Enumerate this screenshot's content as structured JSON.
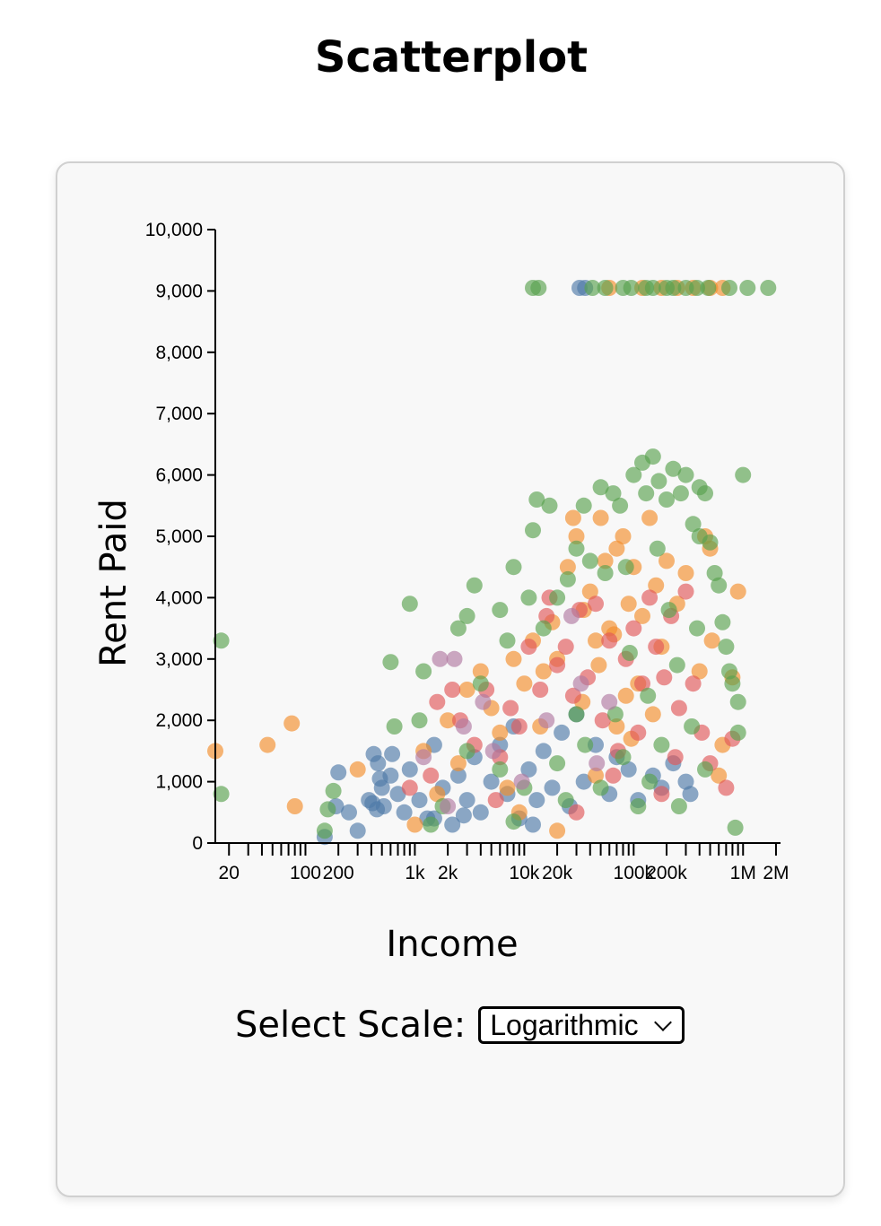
{
  "page": {
    "title": "Scatterplot"
  },
  "controls": {
    "scale_label": "Select Scale:",
    "scale_selected": "Logarithmic"
  },
  "chart_data": {
    "type": "scatter",
    "x_scale": "log",
    "xlabel": "Income",
    "ylabel": "Rent Paid",
    "xlim": [
      15,
      2200000
    ],
    "ylim": [
      0,
      10000
    ],
    "x_ticks": [
      {
        "value": 20,
        "label": "20"
      },
      {
        "value": 100,
        "label": "100"
      },
      {
        "value": 200,
        "label": "200"
      },
      {
        "value": 1000,
        "label": "1k"
      },
      {
        "value": 2000,
        "label": "2k"
      },
      {
        "value": 10000,
        "label": "10k"
      },
      {
        "value": 20000,
        "label": "20k"
      },
      {
        "value": 100000,
        "label": "100k"
      },
      {
        "value": 200000,
        "label": "200k"
      },
      {
        "value": 1000000,
        "label": "1M"
      },
      {
        "value": 2000000,
        "label": "2M"
      }
    ],
    "y_ticks": [
      {
        "value": 0,
        "label": "0"
      },
      {
        "value": 1000,
        "label": "1,000"
      },
      {
        "value": 2000,
        "label": "2,000"
      },
      {
        "value": 3000,
        "label": "3,000"
      },
      {
        "value": 4000,
        "label": "4,000"
      },
      {
        "value": 5000,
        "label": "5,000"
      },
      {
        "value": 6000,
        "label": "6,000"
      },
      {
        "value": 7000,
        "label": "7,000"
      },
      {
        "value": 8000,
        "label": "8,000"
      },
      {
        "value": 9000,
        "label": "9,000"
      },
      {
        "value": 10000,
        "label": "10,000"
      }
    ],
    "grid": false,
    "legend": "none",
    "series": [
      {
        "color": "#4e79a7",
        "points": [
          [
            420,
            1450
          ],
          [
            460,
            1300
          ],
          [
            500,
            900
          ],
          [
            520,
            600
          ],
          [
            380,
            700
          ],
          [
            450,
            550
          ],
          [
            600,
            1100
          ],
          [
            700,
            800
          ],
          [
            800,
            500
          ],
          [
            900,
            1200
          ],
          [
            1100,
            700
          ],
          [
            1300,
            400
          ],
          [
            1500,
            1600
          ],
          [
            1800,
            900
          ],
          [
            2200,
            300
          ],
          [
            2500,
            1100
          ],
          [
            3000,
            700
          ],
          [
            3500,
            1400
          ],
          [
            4000,
            500
          ],
          [
            5000,
            1000
          ],
          [
            6000,
            1600
          ],
          [
            7000,
            800
          ],
          [
            8000,
            1900
          ],
          [
            9000,
            400
          ],
          [
            11000,
            1200
          ],
          [
            13000,
            700
          ],
          [
            15000,
            1500
          ],
          [
            18000,
            900
          ],
          [
            22000,
            1800
          ],
          [
            26000,
            600
          ],
          [
            30000,
            2100
          ],
          [
            35000,
            1000
          ],
          [
            45000,
            1600
          ],
          [
            60000,
            800
          ],
          [
            70000,
            1400
          ],
          [
            90000,
            1200
          ],
          [
            110000,
            700
          ],
          [
            150000,
            1100
          ],
          [
            180000,
            900
          ],
          [
            230000,
            1300
          ],
          [
            300000,
            1000
          ],
          [
            330000,
            800
          ],
          [
            250,
            500
          ],
          [
            300,
            200
          ],
          [
            200,
            1150
          ],
          [
            190,
            600
          ],
          [
            150,
            100
          ],
          [
            620,
            1450
          ],
          [
            1500,
            400
          ],
          [
            32000,
            9050
          ],
          [
            36000,
            9050
          ],
          [
            410,
            650
          ],
          [
            480,
            1050
          ],
          [
            2800,
            450
          ],
          [
            12000,
            300
          ]
        ]
      },
      {
        "color": "#f28e2b",
        "points": [
          [
            15,
            1500
          ],
          [
            45,
            1600
          ],
          [
            75,
            1950
          ],
          [
            80,
            600
          ],
          [
            300,
            1200
          ],
          [
            1200,
            1500
          ],
          [
            2000,
            2000
          ],
          [
            3000,
            2500
          ],
          [
            4000,
            2800
          ],
          [
            5000,
            2200
          ],
          [
            6000,
            1800
          ],
          [
            8000,
            3000
          ],
          [
            10000,
            2600
          ],
          [
            12000,
            3300
          ],
          [
            15000,
            2800
          ],
          [
            18000,
            3600
          ],
          [
            20000,
            3000
          ],
          [
            25000,
            4500
          ],
          [
            28000,
            5300
          ],
          [
            30000,
            5000
          ],
          [
            35000,
            3800
          ],
          [
            40000,
            4100
          ],
          [
            45000,
            3300
          ],
          [
            50000,
            5300
          ],
          [
            55000,
            4600
          ],
          [
            60000,
            3500
          ],
          [
            70000,
            4800
          ],
          [
            80000,
            5000
          ],
          [
            90000,
            3900
          ],
          [
            100000,
            4500
          ],
          [
            120000,
            3700
          ],
          [
            140000,
            5300
          ],
          [
            160000,
            4200
          ],
          [
            180000,
            3200
          ],
          [
            200000,
            4600
          ],
          [
            250000,
            3900
          ],
          [
            300000,
            4400
          ],
          [
            400000,
            2800
          ],
          [
            450000,
            5000
          ],
          [
            500000,
            4800
          ],
          [
            520000,
            3300
          ],
          [
            600000,
            1100
          ],
          [
            800000,
            2700
          ],
          [
            900000,
            4100
          ],
          [
            650000,
            1600
          ],
          [
            1000,
            300
          ],
          [
            1600,
            800
          ],
          [
            2500,
            1300
          ],
          [
            7000,
            900
          ],
          [
            9000,
            500
          ],
          [
            20000,
            200
          ],
          [
            45000,
            1100
          ],
          [
            70000,
            1900
          ],
          [
            110000,
            2600
          ],
          [
            150000,
            2100
          ],
          [
            60000,
            9050
          ],
          [
            120000,
            9050
          ],
          [
            180000,
            9050
          ],
          [
            250000,
            9050
          ],
          [
            350000,
            9050
          ],
          [
            500000,
            9050
          ],
          [
            650000,
            9050
          ],
          [
            34000,
            2300
          ],
          [
            48000,
            2900
          ],
          [
            66000,
            3400
          ],
          [
            85000,
            2400
          ],
          [
            95000,
            1700
          ],
          [
            14000,
            1900
          ]
        ]
      },
      {
        "color": "#e15759",
        "points": [
          [
            900,
            900
          ],
          [
            1600,
            2300
          ],
          [
            2200,
            2500
          ],
          [
            2600,
            2000
          ],
          [
            3500,
            1600
          ],
          [
            4500,
            2500
          ],
          [
            6000,
            1400
          ],
          [
            7500,
            2200
          ],
          [
            9000,
            1900
          ],
          [
            11000,
            3200
          ],
          [
            14000,
            2500
          ],
          [
            16000,
            3700
          ],
          [
            17000,
            4000
          ],
          [
            20000,
            2900
          ],
          [
            24000,
            3200
          ],
          [
            28000,
            2400
          ],
          [
            32000,
            3800
          ],
          [
            38000,
            2700
          ],
          [
            45000,
            3900
          ],
          [
            52000,
            2000
          ],
          [
            60000,
            3300
          ],
          [
            72000,
            1500
          ],
          [
            85000,
            3000
          ],
          [
            100000,
            3500
          ],
          [
            120000,
            2600
          ],
          [
            140000,
            4000
          ],
          [
            160000,
            3200
          ],
          [
            190000,
            2700
          ],
          [
            220000,
            3700
          ],
          [
            260000,
            2200
          ],
          [
            300000,
            4100
          ],
          [
            350000,
            2600
          ],
          [
            420000,
            1800
          ],
          [
            500000,
            1300
          ],
          [
            700000,
            900
          ],
          [
            800000,
            1700
          ],
          [
            1400,
            1100
          ],
          [
            5500,
            700
          ],
          [
            30000,
            500
          ],
          [
            65000,
            1100
          ],
          [
            110000,
            1800
          ],
          [
            180000,
            800
          ],
          [
            240000,
            1400
          ]
        ]
      },
      {
        "color": "#59a14f",
        "points": [
          [
            17,
            3300
          ],
          [
            17,
            800
          ],
          [
            180,
            850
          ],
          [
            160,
            550
          ],
          [
            150,
            200
          ],
          [
            600,
            2950
          ],
          [
            650,
            1900
          ],
          [
            900,
            3900
          ],
          [
            1100,
            2000
          ],
          [
            1200,
            2800
          ],
          [
            2500,
            3500
          ],
          [
            3000,
            3700
          ],
          [
            3500,
            4200
          ],
          [
            4000,
            2600
          ],
          [
            6000,
            3800
          ],
          [
            7000,
            3300
          ],
          [
            8000,
            4500
          ],
          [
            11000,
            4000
          ],
          [
            12000,
            5100
          ],
          [
            13000,
            5600
          ],
          [
            15000,
            3500
          ],
          [
            17000,
            5500
          ],
          [
            20000,
            4000
          ],
          [
            25000,
            4300
          ],
          [
            30000,
            4800
          ],
          [
            35000,
            5500
          ],
          [
            40000,
            4600
          ],
          [
            50000,
            5800
          ],
          [
            55000,
            4400
          ],
          [
            65000,
            5700
          ],
          [
            75000,
            5500
          ],
          [
            85000,
            4500
          ],
          [
            100000,
            6000
          ],
          [
            120000,
            6200
          ],
          [
            130000,
            5700
          ],
          [
            150000,
            6300
          ],
          [
            170000,
            5900
          ],
          [
            200000,
            5600
          ],
          [
            230000,
            6100
          ],
          [
            270000,
            5700
          ],
          [
            300000,
            6000
          ],
          [
            350000,
            5200
          ],
          [
            400000,
            5800
          ],
          [
            450000,
            5700
          ],
          [
            500000,
            4900
          ],
          [
            550000,
            4400
          ],
          [
            600000,
            4200
          ],
          [
            650000,
            3600
          ],
          [
            700000,
            3200
          ],
          [
            750000,
            2800
          ],
          [
            800000,
            2600
          ],
          [
            900000,
            2300
          ],
          [
            1000000,
            6000
          ],
          [
            900000,
            1800
          ],
          [
            850000,
            250
          ],
          [
            400000,
            5000
          ],
          [
            380000,
            3500
          ],
          [
            250000,
            2900
          ],
          [
            180000,
            1600
          ],
          [
            140000,
            1000
          ],
          [
            110000,
            600
          ],
          [
            80000,
            1400
          ],
          [
            50000,
            900
          ],
          [
            30000,
            2100
          ],
          [
            20000,
            1300
          ],
          [
            10000,
            900
          ],
          [
            8000,
            350
          ],
          [
            6000,
            1200
          ],
          [
            3000,
            1500
          ],
          [
            1800,
            600
          ],
          [
            1400,
            300
          ],
          [
            12000,
            9050
          ],
          [
            13500,
            9050
          ],
          [
            42000,
            9050
          ],
          [
            55000,
            9050
          ],
          [
            80000,
            9050
          ],
          [
            95000,
            9050
          ],
          [
            130000,
            9050
          ],
          [
            150000,
            9050
          ],
          [
            200000,
            9050
          ],
          [
            230000,
            9050
          ],
          [
            300000,
            9050
          ],
          [
            380000,
            9050
          ],
          [
            480000,
            9050
          ],
          [
            750000,
            9050
          ],
          [
            1100000,
            9050
          ],
          [
            1700000,
            9050
          ],
          [
            68000,
            2100
          ],
          [
            92000,
            3100
          ],
          [
            135000,
            2400
          ],
          [
            165000,
            4800
          ],
          [
            210000,
            3800
          ],
          [
            340000,
            1900
          ],
          [
            450000,
            1200
          ],
          [
            260000,
            600
          ],
          [
            24000,
            700
          ],
          [
            36000,
            1600
          ]
        ]
      },
      {
        "color": "#b07aa1",
        "points": [
          [
            1700,
            3000
          ],
          [
            2300,
            3000
          ],
          [
            2800,
            1900
          ],
          [
            4200,
            2300
          ],
          [
            5200,
            1500
          ],
          [
            9500,
            1000
          ],
          [
            16000,
            2000
          ],
          [
            27000,
            3700
          ],
          [
            33000,
            2600
          ],
          [
            46000,
            1300
          ],
          [
            60000,
            2300
          ],
          [
            1200,
            1400
          ],
          [
            2000,
            600
          ]
        ]
      }
    ]
  }
}
